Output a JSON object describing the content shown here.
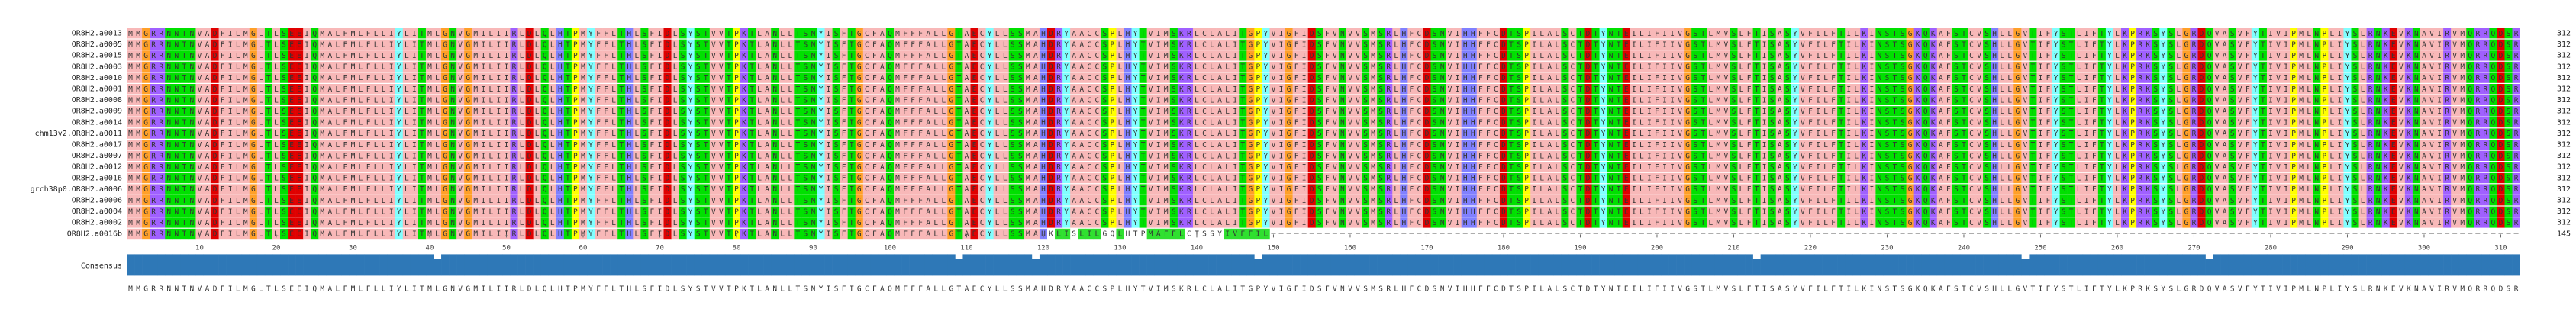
{
  "viewer": {
    "sequence_names": [
      "OR8H2.a0013",
      "OR8H2.a0005",
      "OR8H2.a0015",
      "OR8H2.a0003",
      "OR8H2.a0010",
      "OR8H2.a0001",
      "OR8H2.a0008",
      "OR8H2.a0009",
      "OR8H2.a0014",
      "chm13v2.OR8H2.a0011",
      "OR8H2.a0017",
      "OR8H2.a0007",
      "OR8H2.a0012",
      "OR8H2.a0016",
      "grch38p0.OR8H2.a0006",
      "OR8H2.a0006",
      "OR8H2.a0004",
      "OR8H2.a0002",
      "OR8H2.a0016b"
    ],
    "row_end_numbers": [
      "312",
      "312",
      "312",
      "312",
      "312",
      "312",
      "312",
      "312",
      "312",
      "312",
      "312",
      "312",
      "312",
      "312",
      "312",
      "312",
      "312",
      "312",
      "145"
    ],
    "consensus_label": "Consensus",
    "ruler_ticks": [
      "10",
      "20",
      "30",
      "40",
      "50",
      "60",
      "70",
      "80",
      "90",
      "100",
      "110",
      "120",
      "130",
      "140",
      "150",
      "160",
      "170",
      "180",
      "190",
      "200",
      "210",
      "220",
      "230",
      "240",
      "250",
      "260",
      "270",
      "280",
      "290",
      "300",
      "310"
    ],
    "reference_sequence": "MMGRRNNTNVADFILMGLTLSEEIQMALFMLFLLIYLITMLGNVGMILIIRLDLQLHTPMYFFLTHLSFIDLSYSTVVTPKTLANLLTSNYISFTGCFAQMFFFALLGTAECYLLSSMAHDRYAACCSPLHYTVIMSKRLCLALITGPYVIGFIDSFVNVVSMSRLHFCDSNVIHHFFCDTSPILALSCTDTYNTEILIFIIVGSTLMVSLFTISASYVFILFTILKINSTSGKQKAFSTCVSHLLGVTIFYSTLIFTYLKPRKSYSLGRDQVASVFYTIVIPMLNPLIYSLRNKEVKNAVIRVMQRRQDSR",
    "consensus_sequence": "MMGRRNNTNVADFILMGLTLSEEIQMALFMLFLLIYLITMLGNVGMILIIRLDLQLHTPMYFFLTHLSFIDLSYSTVVTPKTLANLLTSNYISFTGCFAQMFFFALLGTAECYLLSSMAHDRYAACCSPLHYTVIMSKRLCLALITGPYVIGFIDSFVNVVSMSRLHFCDSNVIHHFFCDTSPILALSCTDTYNTEILIFIIVGSTLMVSLFTISASYVFILFTILKINSTSGKQKAFSTCVSHLLGVTIFYSTLIFTYLKPRKSYSLGRDQVASVFYTIVIPMLNPLIYSLRNKEVKNAVIRVMQRRQDSR",
    "truncated_row_tail": "KLISLILGQLHTPMAFFLCTSSYIVFFIL",
    "consensus_dips": [
      40,
      108,
      118,
      147,
      212,
      247,
      271
    ],
    "residue_colors": {
      "M": "#f8b8b8",
      "I": "#f8b8b8",
      "L": "#f8b8b8",
      "V": "#f8b8b8",
      "F": "#f8b8b8",
      "A": "#f8b8b8",
      "C": "#f8b8b8",
      "W": "#f8b8b8",
      "G": "#ffa028",
      "P": "#ffff00",
      "S": "#00e000",
      "T": "#00e000",
      "N": "#00e000",
      "Q": "#00e000",
      "D": "#e00000",
      "E": "#e00000",
      "K": "#a060ff",
      "R": "#a060ff",
      "H": "#8080ff",
      "Y": "#80ffff",
      "gap": "#ffffff"
    },
    "consensus_bar_color": "#2e78b7"
  }
}
